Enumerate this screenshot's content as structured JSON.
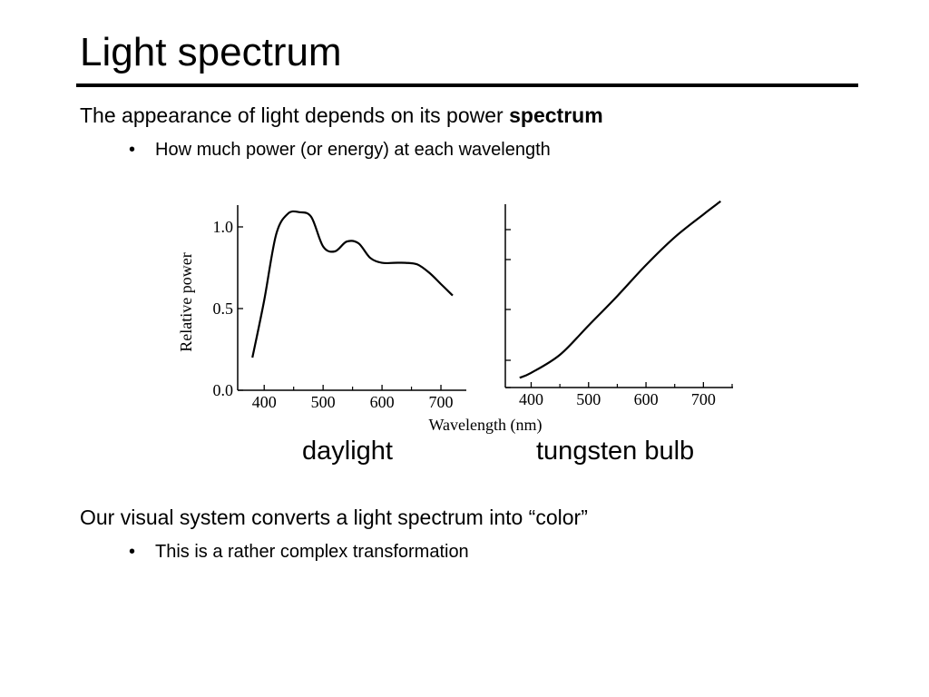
{
  "slide": {
    "title": "Light spectrum",
    "point1_text": "The appearance of light depends on its power ",
    "point1_bold": "spectrum",
    "bullet1": "How much power (or energy) at each wavelength",
    "point2": "Our visual system converts a light spectrum into “color”",
    "bullet2": "This is a rather complex transformation",
    "bullet_glyph": "•"
  },
  "chart_data": [
    {
      "type": "line",
      "caption": "daylight",
      "ylabel": "Relative power",
      "xlabel": "",
      "xlim": [
        355,
        740
      ],
      "ylim": [
        0.0,
        1.1
      ],
      "x_ticks": [
        400,
        500,
        600,
        700
      ],
      "y_ticks": [
        0.0,
        0.5,
        1.0
      ],
      "series": [
        {
          "x": [
            380,
            400,
            420,
            440,
            460,
            480,
            500,
            520,
            540,
            560,
            580,
            600,
            620,
            640,
            660,
            680,
            700,
            720
          ],
          "y": [
            0.2,
            0.55,
            0.95,
            1.08,
            1.09,
            1.06,
            0.88,
            0.85,
            0.91,
            0.9,
            0.81,
            0.78,
            0.78,
            0.78,
            0.77,
            0.72,
            0.65,
            0.58
          ]
        }
      ]
    },
    {
      "type": "line",
      "caption": "tungsten bulb",
      "ylabel": "",
      "xlabel": "Wavelength (nm)",
      "xlim": [
        355,
        750
      ],
      "ylim": [
        0.0,
        1.1
      ],
      "x_ticks": [
        400,
        500,
        600,
        700
      ],
      "y_ticks": [],
      "series": [
        {
          "x": [
            380,
            400,
            450,
            500,
            550,
            600,
            650,
            700,
            730
          ],
          "y": [
            0.06,
            0.09,
            0.2,
            0.38,
            0.56,
            0.75,
            0.92,
            1.06,
            1.14
          ]
        }
      ]
    }
  ]
}
